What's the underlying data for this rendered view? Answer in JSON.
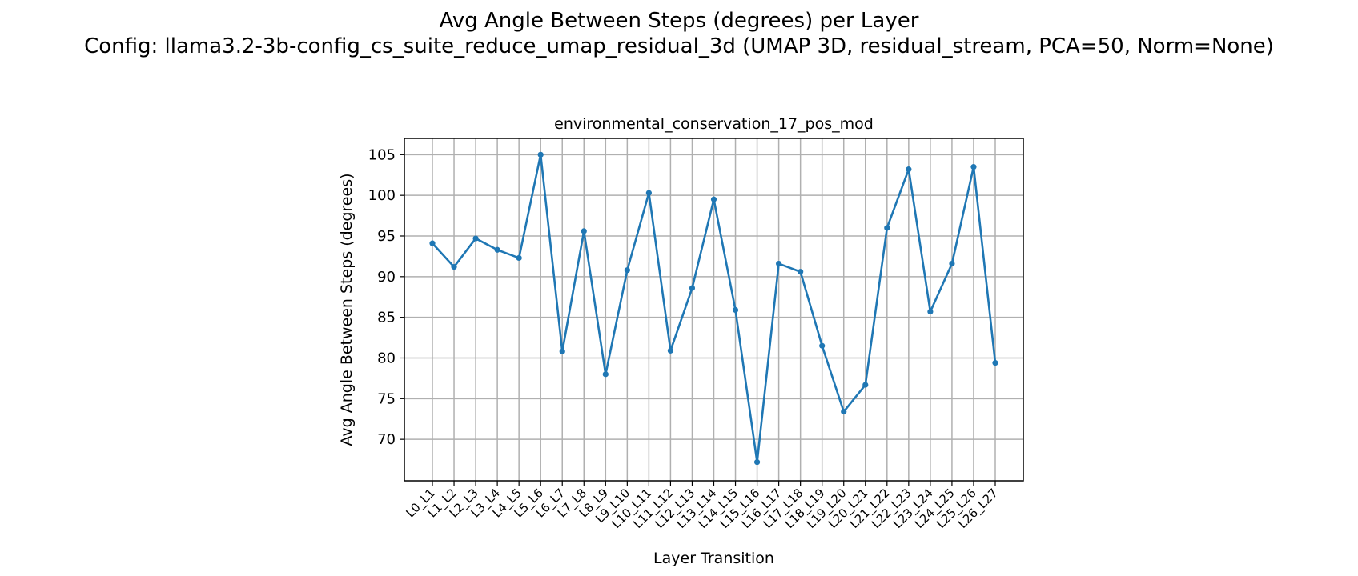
{
  "figure": {
    "title_line1": "Avg Angle Between Steps (degrees) per Layer",
    "title_line2": "Config: llama3.2-3b-config_cs_suite_reduce_umap_residual_3d (UMAP 3D, residual_stream, PCA=50, Norm=None)"
  },
  "chart_data": {
    "type": "line",
    "title": "environmental_conservation_17_pos_mod",
    "xlabel": "Layer Transition",
    "ylabel": "Avg Angle Between Steps (degrees)",
    "categories": [
      "L0_L1",
      "L1_L2",
      "L2_L3",
      "L3_L4",
      "L4_L5",
      "L5_L6",
      "L6_L7",
      "L7_L8",
      "L8_L9",
      "L9_L10",
      "L10_L11",
      "L11_L12",
      "L12_L13",
      "L13_L14",
      "L14_L15",
      "L15_L16",
      "L16_L17",
      "L17_L18",
      "L18_L19",
      "L19_L20",
      "L20_L21",
      "L21_L22",
      "L22_L23",
      "L23_L24",
      "L24_L25",
      "L25_L26",
      "L26_L27"
    ],
    "values": [
      94.1,
      91.2,
      94.7,
      93.3,
      92.3,
      105.0,
      80.8,
      95.6,
      78.0,
      90.8,
      100.3,
      80.9,
      88.6,
      99.5,
      85.9,
      67.2,
      91.6,
      90.6,
      81.5,
      73.4,
      76.7,
      96.0,
      103.2,
      85.7,
      91.6,
      103.5,
      79.4
    ],
    "yticks": [
      70,
      75,
      80,
      85,
      90,
      95,
      100,
      105
    ],
    "ylim": [
      64.9,
      107.0
    ],
    "grid": true,
    "line_color": "#1f77b4"
  }
}
